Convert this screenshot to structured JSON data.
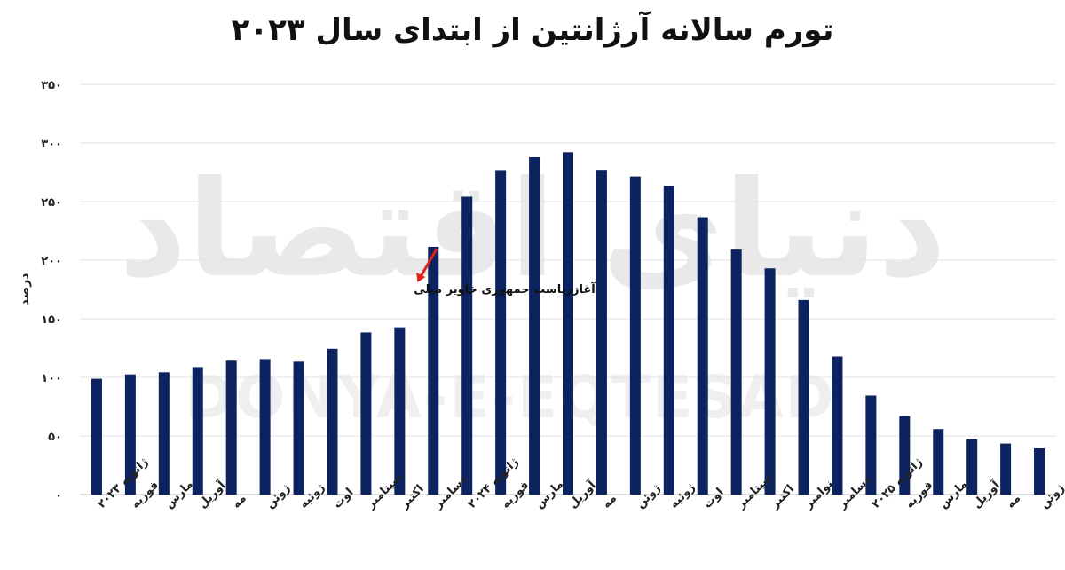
{
  "chart_data": {
    "type": "bar",
    "title": "تورم سالانه آرژانتین از ابتدای سال ۲۰۲۳",
    "ylabel": "درصد",
    "xlabel": "",
    "ylim": [
      0,
      350
    ],
    "yticks": [
      0,
      50,
      100,
      150,
      200,
      250,
      300,
      350
    ],
    "ytick_labels": [
      "۰",
      "۵۰",
      "۱۰۰",
      "۱۵۰",
      "۲۰۰",
      "۲۵۰",
      "۳۰۰",
      "۳۵۰"
    ],
    "grid": true,
    "bar_color": "#0d2360",
    "categories": [
      "ژانویه ۲۰۲۳",
      "فوریه",
      "مارس",
      "آوریل",
      "مه",
      "ژوئن",
      "ژوئیه",
      "اوت",
      "سپتامبر",
      "اکتبر",
      "دسامبر",
      "ژانویه ۲۰۲۴",
      "فوریه",
      "مارس",
      "آوریل",
      "مه",
      "ژوئن",
      "ژوئیه",
      "اوت",
      "سپتامبر",
      "اکتبر",
      "نوامبر",
      "دسامبر",
      "ژانویه ۲۰۲۵",
      "فوریه",
      "مارس",
      "آوریل",
      "مه",
      "ژوئن"
    ],
    "values": [
      98.8,
      102.5,
      104.3,
      108.8,
      114.2,
      115.6,
      113.4,
      124.4,
      138.3,
      142.7,
      211.4,
      254.2,
      276.2,
      287.9,
      292.2,
      276.4,
      271.5,
      263.4,
      236.7,
      209,
      193,
      166,
      117.8,
      84.5,
      66.9,
      55.9,
      47.3,
      43.5,
      39.4
    ],
    "annotation": {
      "text": "آغازریاست جمهوری خاویر میلی",
      "target_category_index": 10,
      "arrow_color": "#e0201a"
    }
  },
  "watermark": {
    "text_fa": "دنیای اقتصاد",
    "text_en": "DONYA-E-EQTESAD"
  }
}
